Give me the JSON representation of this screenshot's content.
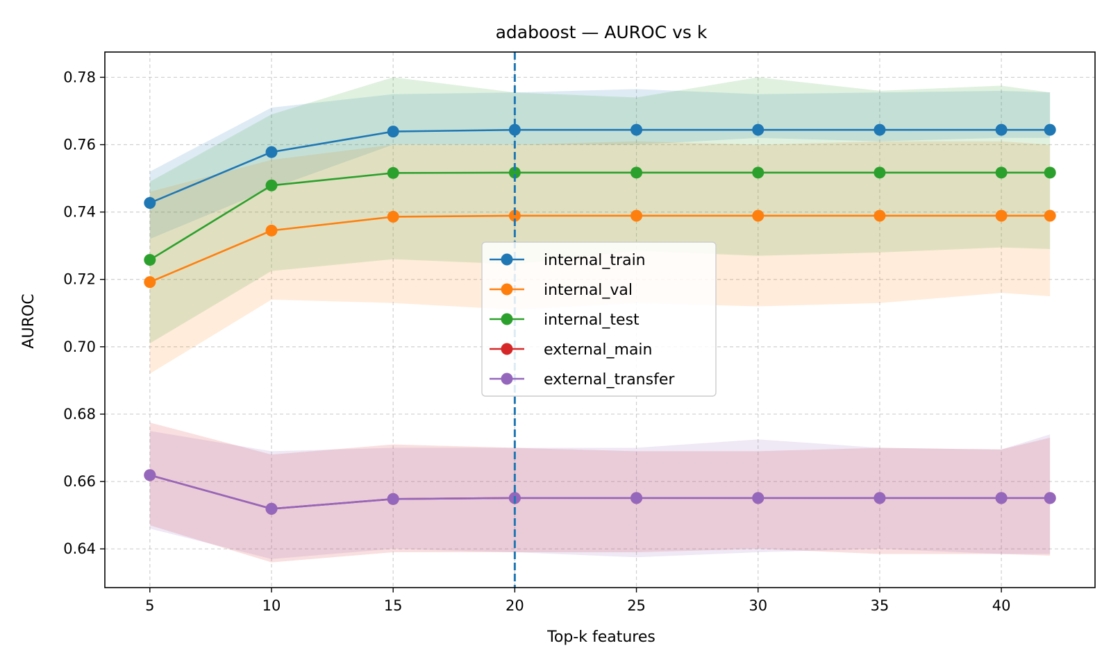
{
  "chart_data": {
    "type": "line",
    "title": "adaboost — AUROC vs k",
    "xlabel": "Top-k features",
    "ylabel": "AUROC",
    "x": [
      5,
      10,
      15,
      20,
      25,
      30,
      35,
      40,
      42
    ],
    "xticks": [
      5,
      10,
      15,
      20,
      25,
      30,
      35,
      40
    ],
    "yticks": [
      0.64,
      0.66,
      0.68,
      0.7,
      0.72,
      0.74,
      0.76,
      0.78
    ],
    "xlim": [
      3.15,
      43.85
    ],
    "ylim": [
      0.6285,
      0.7875
    ],
    "grid": true,
    "legend_position": "center",
    "vline": {
      "x": 20,
      "style": "dashed",
      "color": "#1f77b4"
    },
    "series": [
      {
        "name": "internal_train",
        "color": "#1f77b4",
        "values": [
          0.7427,
          0.7578,
          0.7639,
          0.7644,
          0.7644,
          0.7644,
          0.7644,
          0.7644,
          0.7644
        ],
        "band_upper": [
          0.752,
          0.771,
          0.775,
          0.7755,
          0.7765,
          0.775,
          0.7755,
          0.776,
          0.7755
        ],
        "band_lower": [
          0.732,
          0.747,
          0.76,
          0.76,
          0.76,
          0.762,
          0.761,
          0.762,
          0.762
        ]
      },
      {
        "name": "internal_val",
        "color": "#ff7f0e",
        "values": [
          0.7192,
          0.7345,
          0.7386,
          0.7389,
          0.7389,
          0.7389,
          0.7389,
          0.7389,
          0.7389
        ],
        "band_upper": [
          0.746,
          0.7555,
          0.76,
          0.76,
          0.761,
          0.76,
          0.761,
          0.761,
          0.76
        ],
        "band_lower": [
          0.692,
          0.714,
          0.713,
          0.711,
          0.713,
          0.712,
          0.713,
          0.716,
          0.715
        ]
      },
      {
        "name": "internal_test",
        "color": "#2ca02c",
        "values": [
          0.7258,
          0.7479,
          0.7516,
          0.7517,
          0.7517,
          0.7517,
          0.7517,
          0.7517,
          0.7517
        ],
        "band_upper": [
          0.749,
          0.769,
          0.78,
          0.7755,
          0.774,
          0.78,
          0.776,
          0.7775,
          0.7755
        ],
        "band_lower": [
          0.701,
          0.7225,
          0.726,
          0.7245,
          0.7285,
          0.727,
          0.728,
          0.7295,
          0.729
        ]
      },
      {
        "name": "external_main",
        "color": "#d62728",
        "values": [
          0.6619,
          0.6519,
          0.6548,
          0.6551,
          0.6551,
          0.6551,
          0.6551,
          0.6551,
          0.6551
        ],
        "band_upper": [
          0.6775,
          0.668,
          0.671,
          0.67,
          0.669,
          0.669,
          0.67,
          0.6695,
          0.673
        ],
        "band_lower": [
          0.647,
          0.636,
          0.639,
          0.639,
          0.639,
          0.64,
          0.6385,
          0.6385,
          0.638
        ]
      },
      {
        "name": "external_transfer",
        "color": "#9467bd",
        "values": [
          0.6619,
          0.6519,
          0.6548,
          0.6551,
          0.6551,
          0.6551,
          0.6551,
          0.6551,
          0.6551
        ],
        "band_upper": [
          0.675,
          0.669,
          0.67,
          0.67,
          0.67,
          0.6725,
          0.67,
          0.6695,
          0.674
        ],
        "band_lower": [
          0.646,
          0.637,
          0.64,
          0.639,
          0.6375,
          0.639,
          0.64,
          0.6385,
          0.6385
        ]
      }
    ]
  }
}
